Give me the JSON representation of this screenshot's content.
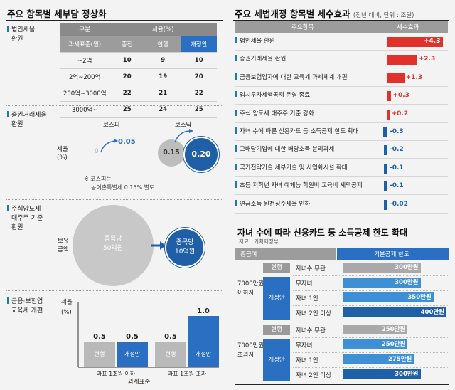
{
  "left": {
    "title": "주요 항목별 세부담 정상화",
    "corp": {
      "label": [
        "법인세율",
        "환원"
      ],
      "col_group1": "구분",
      "col_group2": "세율(%)",
      "col_base": "과세표준(원)",
      "col_now": "종전",
      "col_cur": "현행",
      "col_new": "개정안",
      "rows": [
        {
          "base": "~2억",
          "prev": "10",
          "cur": "9",
          "new": "10"
        },
        {
          "base": "2억~200억",
          "prev": "20",
          "cur": "19",
          "new": "20"
        },
        {
          "base": "200억~3000억",
          "prev": "22",
          "cur": "21",
          "new": "22"
        },
        {
          "base": "3000억~",
          "prev": "25",
          "cur": "24",
          "new": "25"
        }
      ]
    },
    "stt": {
      "label": [
        "증권거래세율",
        "환원"
      ],
      "kospi": "코스피",
      "kosdaq": "코스닥",
      "rate_label": [
        "세율",
        "(%)"
      ],
      "kospi_from": "0",
      "kospi_to": "0.05",
      "kosdaq_from": "0.15",
      "kosdaq_to": "0.20",
      "note": [
        "※ 코스피는",
        "농어촌특별세 0.15% 별도"
      ]
    },
    "major": {
      "label": [
        "주식양도세",
        "대주주 기준",
        "환원"
      ],
      "hold_label": [
        "보유",
        "금액"
      ],
      "from": [
        "종목당",
        "50억원"
      ],
      "to": [
        "종목당",
        "10억원"
      ]
    },
    "edu": {
      "label": [
        "금융·보험업",
        "교육세 개편"
      ],
      "rate_label": [
        "세율",
        "(%)"
      ],
      "xlabel": "과세표준",
      "legend_cur": "현행",
      "legend_new": "개정안"
    }
  },
  "right": {
    "title": "주요 세법개정 항목별 세수효과",
    "title_sub": "(전년 대비, 단위 : 조원)",
    "col_item": "주요항목",
    "col_effect": "세수효과",
    "items": [
      "법인세율 환원",
      "증권거래세율 환원",
      "금융보험업자에 대한 교육세 과세체계 개편",
      "임시투자세액공제 운영 종료",
      "주식 양도세 대주주 기준 강화",
      "자녀 수에 따른 신용카드 등 소득공제 한도 확대",
      "고배당기업에 대한 배당소득 분리과세",
      "국가전략기술 세부기술 및 사업화시설 확대",
      "초등 저학년 자녀 예체능 학원비 교육비 세액공제",
      "연금소득 원천징수세율 인하"
    ]
  },
  "card": {
    "title": "자녀 수에 따라 신용카드 등 소득공제 한도 확대",
    "source": "자료 : 기획재정부",
    "col_income": "총급여",
    "col_limit": "기본공제 한도",
    "groups": [
      {
        "income": [
          "7000만원",
          "이하자"
        ],
        "cur_tag": "현행",
        "new_tag": "개정안",
        "rows": [
          {
            "cond": "자녀수 무관",
            "label": "300만원"
          },
          {
            "cond": "무자녀",
            "label": "300만원"
          },
          {
            "cond": "자녀 1인",
            "label": "350만원"
          },
          {
            "cond": "자녀 2인 이상",
            "label": "400만원"
          }
        ]
      },
      {
        "income": [
          "7000만원",
          "초과자"
        ],
        "cur_tag": "현행",
        "new_tag": "개정안",
        "rows": [
          {
            "cond": "자녀수 무관",
            "label": "250만원"
          },
          {
            "cond": "무자녀",
            "label": "250만원"
          },
          {
            "cond": "자녀 1인",
            "label": "275만원"
          },
          {
            "cond": "자녀 2인 이상",
            "label": "300만원"
          }
        ]
      }
    ]
  },
  "colors": {
    "blue": "#2a6fc1",
    "dark_blue": "#1f5fa8",
    "gray": "#9a9a9a",
    "red": "#e0312b",
    "light_blue": "#3d8fd6"
  },
  "chart_data": [
    {
      "type": "bar",
      "title": "주요 세법개정 항목별 세수효과",
      "subtitle": "(전년 대비, 단위 : 조원)",
      "orientation": "horizontal",
      "categories": [
        "법인세율 환원",
        "증권거래세율 환원",
        "금융보험업자에 대한 교육세 과세체계 개편",
        "임시투자세액공제 운영 종료",
        "주식 양도세 대주주 기준 강화",
        "자녀 수에 따른 신용카드 등 소득공제 한도 확대",
        "고배당기업에 대한 배당소득 분리과세",
        "국가전략기술 세부기술 및 사업화시설 확대",
        "초등 저학년 자녀 예체능 학원비 교육비 세액공제",
        "연금소득 원천징수세율 인하"
      ],
      "values": [
        4.3,
        2.3,
        1.3,
        0.3,
        0.2,
        -0.3,
        -0.2,
        -0.1,
        -0.1,
        -0.02
      ],
      "value_labels": [
        "+4.3",
        "+2.3",
        "+1.3",
        "+0.3",
        "+0.2",
        "-0.3",
        "-0.2",
        "-0.1",
        "-0.1",
        "-0.02"
      ],
      "xlim": [
        -0.4,
        4.6
      ]
    },
    {
      "type": "bar",
      "title": "금융·보험업 교육세 개편",
      "categories": [
        "과표 1조원 이하",
        "과표 1조원 초과"
      ],
      "xlabel": "과세표준",
      "ylabel": "세율 (%)",
      "series": [
        {
          "name": "현행",
          "values": [
            0.5,
            0.5
          ]
        },
        {
          "name": "개정안",
          "values": [
            0.5,
            1.0
          ]
        }
      ],
      "value_labels": [
        [
          "0.5",
          "0.5"
        ],
        [
          "0.5",
          "1.0"
        ]
      ],
      "ylim": [
        0,
        1.2
      ]
    },
    {
      "type": "bar",
      "title": "자녀 수에 따라 신용카드 등 소득공제 한도 확대",
      "orientation": "horizontal",
      "unit": "만원",
      "groups": [
        "7000만원 이하자",
        "7000만원 초과자"
      ],
      "series": [
        {
          "values": [
            300,
            300,
            350,
            400
          ]
        },
        {
          "values": [
            250,
            250,
            275,
            300
          ]
        }
      ],
      "xlim": [
        0,
        400
      ]
    }
  ]
}
